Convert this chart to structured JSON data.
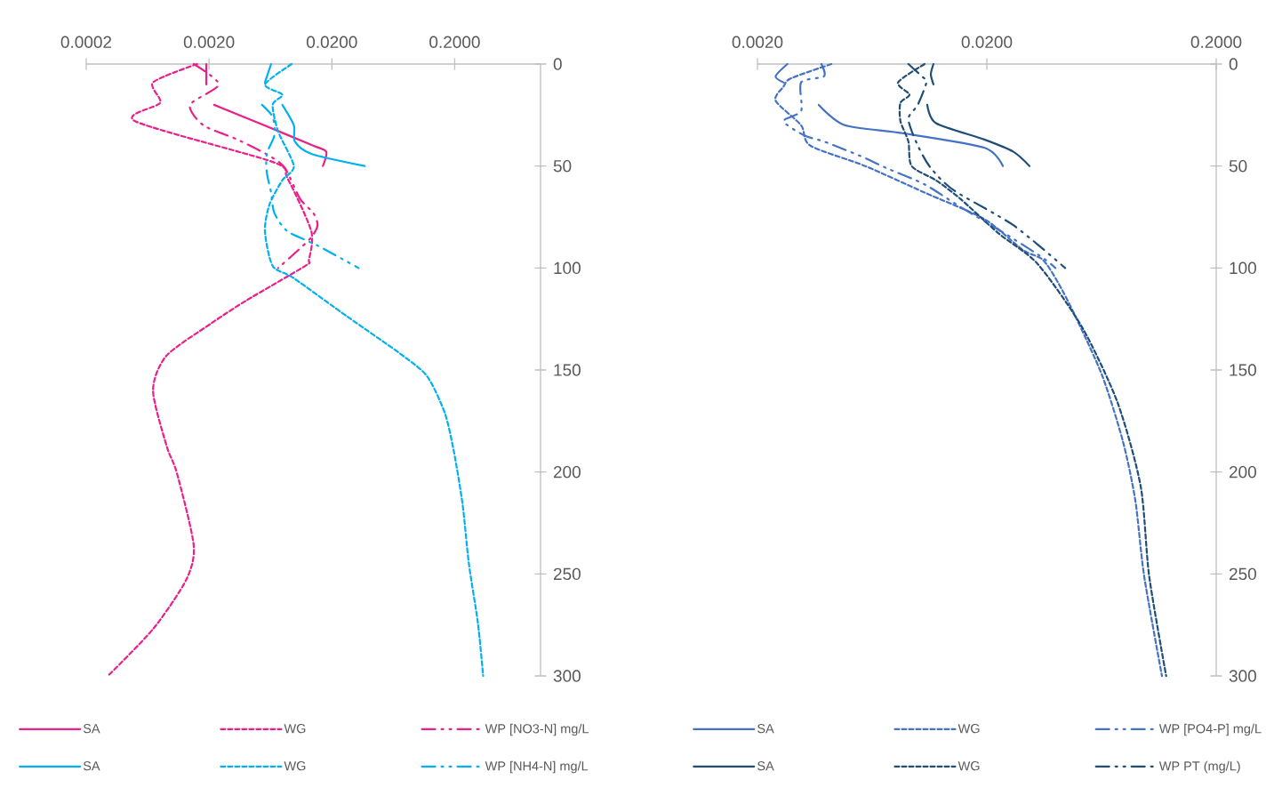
{
  "chart_data": [
    {
      "type": "line",
      "log": "x",
      "xlim": [
        0.0002,
        1
      ],
      "ylim": [
        300,
        0
      ],
      "legend": "bottom",
      "grid": false,
      "xticks": [
        {
          "value": 0.0002,
          "label": "0.0002"
        },
        {
          "value": 0.002,
          "label": "0.0020"
        },
        {
          "value": 0.02,
          "label": "0.0200"
        },
        {
          "value": 0.2,
          "label": "0.2000"
        }
      ],
      "yticks": [
        0,
        50,
        100,
        150,
        200,
        250,
        300
      ],
      "series": [
        {
          "name": "SA",
          "color": "#EA1F8A",
          "line_style": "solid",
          "x": [
            0.0019,
            0.0019,
            null,
            0.0022,
            0.0056,
            0.0141,
            0.018,
            0.0169
          ],
          "values": [
            0,
            10,
            null,
            20,
            30,
            40,
            43,
            50
          ]
        },
        {
          "name": "WG",
          "color": "#EA1F8A",
          "line_style": "dashed",
          "x": [
            0.0016,
            0.0007,
            0.0008,
            0.0005,
            0.0066,
            0.0087,
            0.0136,
            0.013,
            0.0121,
            0.004,
            0.0021,
            0.0009,
            0.0007,
            0.0009,
            0.0011,
            0.0015,
            0.0013,
            0.0007,
            0.0003
          ],
          "values": [
            0,
            9,
            19,
            28,
            48,
            56,
            82,
            96,
            99,
            116,
            127,
            143,
            160,
            187,
            201,
            236,
            253,
            277,
            300
          ]
        },
        {
          "name": "WP [NO3-N] mg/L",
          "color": "#EA1F8A",
          "line_style": "dashdot",
          "x": [
            0.0015,
            0.0024,
            0.0014,
            0.0018,
            0.0034,
            0.0062,
            0.0083,
            0.011,
            0.0141,
            0.0153,
            0.0136,
            0.0103,
            0.0073
          ],
          "values": [
            0,
            10,
            20,
            30,
            37,
            45,
            51,
            66,
            73,
            79,
            85,
            92,
            100
          ]
        },
        {
          "name": "SA",
          "color": "#00B0F0",
          "line_style": "solid",
          "x": [
            0.0064,
            0.0057,
            null,
            0.0079,
            0.0098,
            0.01,
            0.0136,
            0.037
          ],
          "values": [
            0,
            9,
            null,
            20,
            30,
            38,
            44,
            50
          ]
        },
        {
          "name": "WG",
          "color": "#00B0F0",
          "line_style": "dashed",
          "x": [
            0.0094,
            0.0057,
            0.0079,
            0.0066,
            0.0073,
            0.0098,
            0.0079,
            0.0062,
            0.0057,
            0.0066,
            0.0098,
            0.027,
            0.072,
            0.119,
            0.166,
            0.197,
            0.232,
            0.261,
            0.309,
            0.341
          ],
          "values": [
            0,
            10,
            15,
            20,
            33,
            50,
            57,
            69,
            82,
            99,
            105,
            124,
            142,
            153,
            171,
            190,
            216,
            245,
            274,
            300
          ]
        },
        {
          "name": "WP [NH4-N] mg/L",
          "color": "#00B0F0",
          "line_style": "dashdot",
          "x": [
            0.0054,
            0.0066,
            0.0068,
            0.0059,
            0.0059,
            0.0064,
            0.0068,
            0.0087,
            0.0153,
            0.033
          ],
          "values": [
            20,
            26,
            35,
            44,
            53,
            63,
            73,
            82,
            89,
            100
          ]
        }
      ]
    },
    {
      "type": "line",
      "log": "x",
      "xlim": [
        0.002,
        0.2
      ],
      "ylim": [
        300,
        0
      ],
      "legend": "bottom",
      "grid": false,
      "xticks": [
        {
          "value": 0.002,
          "label": "0.0020"
        },
        {
          "value": 0.02,
          "label": "0.0200"
        },
        {
          "value": 0.2,
          "label": "0.2000"
        }
      ],
      "yticks": [
        0,
        50,
        100,
        150,
        200,
        250,
        300
      ],
      "series": [
        {
          "name": "SA",
          "color": "#4472C4",
          "line_style": "solid",
          "x": [
            0.0027,
            0.0024,
            0.0026,
            null,
            0.0037,
            0.0048,
            0.0087,
            0.0195,
            0.0235
          ],
          "values": [
            0,
            6,
            9,
            null,
            20,
            30,
            34,
            41,
            50
          ]
        },
        {
          "name": "WG",
          "color": "#4472C4",
          "line_style": "dashed",
          "x": [
            0.0042,
            0.0028,
            0.0026,
            0.0024,
            0.0031,
            0.0034,
            0.0059,
            0.0107,
            0.0195,
            0.0286,
            0.0351,
            0.0408,
            0.0488,
            0.0638,
            0.0784,
            0.0888,
            0.097,
            0.116
          ],
          "values": [
            0,
            7,
            11,
            18,
            30,
            40,
            50,
            63,
            76,
            91,
            96,
            107,
            124,
            153,
            185,
            214,
            251,
            300
          ]
        },
        {
          "name": "WP [PO4-P] mg/L",
          "color": "#4472C4",
          "line_style": "dashdot",
          "x": [
            0.0038,
            0.0039,
            0.0031,
            0.0031,
            0.0026,
            0.0032,
            0.0039,
            0.0056,
            0.0073,
            0.0107,
            0.0153,
            0.0239,
            0.0351,
            0.0398
          ],
          "values": [
            0,
            6,
            9,
            23,
            28,
            35,
            38,
            45,
            51,
            59,
            70,
            83,
            95,
            100
          ]
        },
        {
          "name": "SA",
          "color": "#1F4E79",
          "line_style": "solid",
          "x": [
            0.0117,
            0.0114,
            0.0117,
            null,
            0.011,
            0.012,
            0.0195,
            0.0261,
            0.0307
          ],
          "values": [
            0,
            5,
            10,
            null,
            20,
            29,
            37,
            43,
            50
          ]
        },
        {
          "name": "WG",
          "color": "#1F4E79",
          "line_style": "dashed",
          "x": [
            0.0107,
            0.0082,
            0.0092,
            0.0084,
            0.0084,
            0.0091,
            0.0094,
            0.012,
            0.0153,
            0.0225,
            0.0333,
            0.052,
            0.0743,
            0.0937,
            0.102,
            0.121
          ],
          "values": [
            0,
            9,
            15,
            19,
            28,
            38,
            50,
            57,
            66,
            83,
            98,
            129,
            166,
            207,
            251,
            300
          ]
        },
        {
          "name": "WP PT (mg/L)",
          "color": "#1F4E79",
          "line_style": "dashdot",
          "x": [
            0.0091,
            0.0104,
            0.0109,
            0.01,
            0.0091,
            0.01,
            0.0114,
            0.0144,
            0.0261,
            0.0439
          ],
          "values": [
            0,
            6,
            9,
            20,
            27,
            40,
            51,
            62,
            79,
            100
          ]
        }
      ]
    }
  ]
}
